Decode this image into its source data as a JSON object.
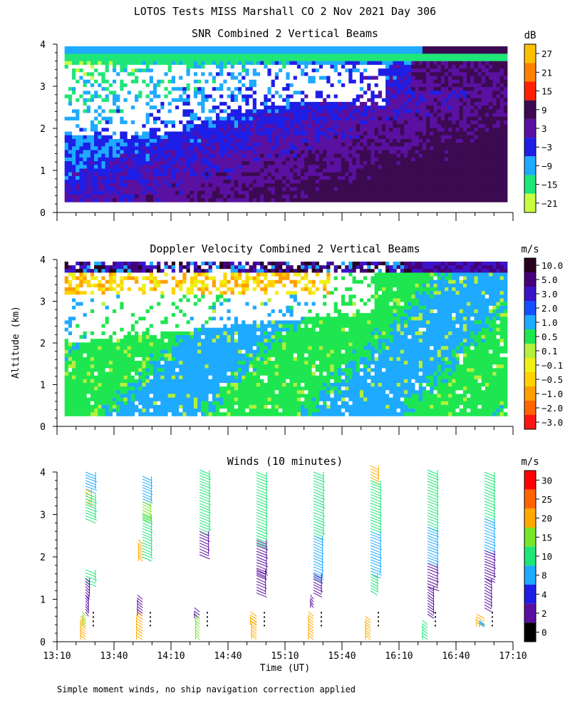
{
  "figure": {
    "title": "LOTOS Tests MISS Marshall CO   2 Nov 2021 Day 306",
    "ylabel": "Altitude (km)",
    "xlabel": "Time (UT)",
    "footnote": "Simple moment winds, no ship navigation correction applied"
  },
  "colors": {
    "missing": "#ffffff",
    "axis": "#000000"
  },
  "chart_data": [
    {
      "type": "heatmap",
      "title": "SNR Combined 2 Vertical Beams",
      "units": "dB",
      "x_ticks": [
        "13:10",
        "13:40",
        "14:10",
        "14:40",
        "15:10",
        "15:40",
        "16:10",
        "16:40",
        "17:10"
      ],
      "y_ticks": [
        "0",
        "1",
        "2",
        "3",
        "4"
      ],
      "xlim_minutes_utc": [
        790,
        1030
      ],
      "ylim_km": [
        0,
        4
      ],
      "colorbar": {
        "labels": [
          "27",
          "21",
          "15",
          "9",
          "3",
          "−3",
          "−9",
          "−15",
          "−21"
        ],
        "colors": [
          "#ffc000",
          "#ff8000",
          "#ff2000",
          "#3c0a50",
          "#5a10a0",
          "#1e1ee6",
          "#1eaaff",
          "#1ee678",
          "#c8ff3c"
        ]
      },
      "data_extent_km": [
        0.25,
        3.95
      ],
      "data_extent_minutes_utc": [
        794,
        1027
      ],
      "description_of_field": "low SNR aloft, high SNR in lowest km, strong return near 16:10-17:05 below 1 km"
    },
    {
      "type": "heatmap",
      "title": "Doppler Velocity Combined 2 Vertical Beams",
      "units": "m/s",
      "x_ticks": [
        "13:10",
        "13:40",
        "14:10",
        "14:40",
        "15:10",
        "15:40",
        "16:10",
        "16:40",
        "17:10"
      ],
      "y_ticks": [
        "0",
        "1",
        "2",
        "3",
        "4"
      ],
      "xlim_minutes_utc": [
        790,
        1030
      ],
      "ylim_km": [
        0,
        4
      ],
      "colorbar": {
        "labels": [
          "10.0",
          "5.0",
          "3.0",
          "2.0",
          "1.0",
          "0.5",
          "0.1",
          "−0.1",
          "−0.5",
          "−1.0",
          "−2.0",
          "−3.0"
        ],
        "colors": [
          "#28001e",
          "#46007a",
          "#3c14c8",
          "#1450ff",
          "#1eaaff",
          "#1ee650",
          "#b4f03c",
          "#f0f014",
          "#ffd200",
          "#ffa000",
          "#ff6400",
          "#ff1414"
        ]
      },
      "data_extent_km": [
        0.25,
        3.95
      ],
      "data_extent_minutes_utc": [
        794,
        1027
      ]
    },
    {
      "type": "barbs",
      "title": "Winds (10 minutes)",
      "units": "m/s",
      "x_ticks": [
        "13:10",
        "13:40",
        "14:10",
        "14:40",
        "15:10",
        "15:40",
        "16:10",
        "16:40",
        "17:10"
      ],
      "y_ticks": [
        "0",
        "1",
        "2",
        "3",
        "4"
      ],
      "xlim_minutes_utc": [
        790,
        1030
      ],
      "ylim_km": [
        0,
        4
      ],
      "colorbar": {
        "labels": [
          "30",
          "25",
          "20",
          "15",
          "10",
          "8",
          "4",
          "2",
          "0"
        ],
        "colors": [
          "#ff0000",
          "#ff6400",
          "#ffaa00",
          "#78e628",
          "#1ee678",
          "#1eaaff",
          "#1e1ee6",
          "#5a10a0",
          "#000000"
        ]
      },
      "profile_times_minutes_utc": [
        805,
        835,
        865,
        895,
        925,
        955,
        985,
        1015
      ],
      "profiles": [
        {
          "time_min": 805,
          "segments": [
            {
              "z_top_km": 4.0,
              "z_bottom_km": 3.6,
              "speed": 9,
              "dir_dx": 1.0
            },
            {
              "z_top_km": 3.6,
              "z_bottom_km": 3.3,
              "speed": 22,
              "dir_dx": 0.6
            },
            {
              "z_top_km": 3.5,
              "z_bottom_km": 2.9,
              "speed": 14,
              "dir_dx": 1.0
            },
            {
              "z_top_km": 1.7,
              "z_bottom_km": 1.4,
              "speed": 14,
              "dir_dx": 1.0
            },
            {
              "z_top_km": 1.5,
              "z_bottom_km": 1.1,
              "speed": 3,
              "dir_dx": 0.4
            },
            {
              "z_top_km": 1.1,
              "z_bottom_km": 0.7,
              "speed": 3,
              "dir_dx": 0.3
            },
            {
              "z_top_km": 0.6,
              "z_bottom_km": 0.35,
              "speed": 16,
              "dir_dx": -0.3
            },
            {
              "z_top_km": 0.5,
              "z_bottom_km": 0.05,
              "speed": 22,
              "dir_dx": -0.5
            }
          ]
        },
        {
          "time_min": 835,
          "segments": [
            {
              "z_top_km": 3.9,
              "z_bottom_km": 3.3,
              "speed": 9,
              "dir_dx": 0.9
            },
            {
              "z_top_km": 3.3,
              "z_bottom_km": 2.9,
              "speed": 16,
              "dir_dx": 0.8
            },
            {
              "z_top_km": 3.0,
              "z_bottom_km": 2.0,
              "speed": 12,
              "dir_dx": 0.9
            },
            {
              "z_top_km": 2.3,
              "z_bottom_km": 1.9,
              "speed": 22,
              "dir_dx": -0.4
            },
            {
              "z_top_km": 1.0,
              "z_bottom_km": 0.6,
              "speed": 3,
              "dir_dx": -0.5
            },
            {
              "z_top_km": 0.6,
              "z_bottom_km": 0.05,
              "speed": 22,
              "dir_dx": -0.6
            }
          ]
        },
        {
          "time_min": 865,
          "segments": [
            {
              "z_top_km": 4.05,
              "z_bottom_km": 2.6,
              "speed": 14,
              "dir_dx": 1.0
            },
            {
              "z_top_km": 2.6,
              "z_bottom_km": 2.05,
              "speed": 3,
              "dir_dx": 0.9
            },
            {
              "z_top_km": 0.7,
              "z_bottom_km": 0.55,
              "speed": 3,
              "dir_dx": -0.5
            },
            {
              "z_top_km": 0.55,
              "z_bottom_km": 0.05,
              "speed": 16,
              "dir_dx": -0.4
            }
          ]
        },
        {
          "time_min": 895,
          "segments": [
            {
              "z_top_km": 4.0,
              "z_bottom_km": 2.3,
              "speed": 14,
              "dir_dx": 1.0
            },
            {
              "z_top_km": 2.4,
              "z_bottom_km": 1.6,
              "speed": 3,
              "dir_dx": 1.0
            },
            {
              "z_top_km": 1.7,
              "z_bottom_km": 1.15,
              "speed": 3,
              "dir_dx": 0.9
            },
            {
              "z_top_km": 0.6,
              "z_bottom_km": 0.4,
              "speed": 22,
              "dir_dx": -0.6
            },
            {
              "z_top_km": 0.45,
              "z_bottom_km": 0.05,
              "speed": 22,
              "dir_dx": -0.5
            }
          ]
        },
        {
          "time_min": 925,
          "segments": [
            {
              "z_top_km": 4.0,
              "z_bottom_km": 2.5,
              "speed": 14,
              "dir_dx": 1.0
            },
            {
              "z_top_km": 2.5,
              "z_bottom_km": 1.5,
              "speed": 9,
              "dir_dx": 0.9
            },
            {
              "z_top_km": 1.6,
              "z_bottom_km": 1.15,
              "speed": 3,
              "dir_dx": 0.8
            },
            {
              "z_top_km": 1.0,
              "z_bottom_km": 0.8,
              "speed": 3,
              "dir_dx": -0.3
            },
            {
              "z_top_km": 0.6,
              "z_bottom_km": 0.05,
              "speed": 22,
              "dir_dx": -0.5
            }
          ]
        },
        {
          "time_min": 955,
          "segments": [
            {
              "z_top_km": 4.15,
              "z_bottom_km": 3.8,
              "speed": 22,
              "dir_dx": 0.8
            },
            {
              "z_top_km": 3.8,
              "z_bottom_km": 2.6,
              "speed": 14,
              "dir_dx": 1.0
            },
            {
              "z_top_km": 2.6,
              "z_bottom_km": 1.6,
              "speed": 9,
              "dir_dx": 1.0
            },
            {
              "z_top_km": 1.6,
              "z_bottom_km": 1.2,
              "speed": 14,
              "dir_dx": 0.7
            },
            {
              "z_top_km": 0.5,
              "z_bottom_km": 0.05,
              "speed": 22,
              "dir_dx": -0.5
            }
          ]
        },
        {
          "time_min": 985,
          "segments": [
            {
              "z_top_km": 4.05,
              "z_bottom_km": 2.7,
              "speed": 14,
              "dir_dx": 1.0
            },
            {
              "z_top_km": 2.7,
              "z_bottom_km": 1.85,
              "speed": 9,
              "dir_dx": 1.0
            },
            {
              "z_top_km": 1.85,
              "z_bottom_km": 1.3,
              "speed": 3,
              "dir_dx": 1.0
            },
            {
              "z_top_km": 1.3,
              "z_bottom_km": 0.65,
              "speed": 3,
              "dir_dx": 0.6
            },
            {
              "z_top_km": 0.4,
              "z_bottom_km": 0.05,
              "speed": 14,
              "dir_dx": -0.5
            }
          ]
        },
        {
          "time_min": 1015,
          "segments": [
            {
              "z_top_km": 4.0,
              "z_bottom_km": 2.9,
              "speed": 14,
              "dir_dx": 1.0
            },
            {
              "z_top_km": 2.9,
              "z_bottom_km": 2.15,
              "speed": 9,
              "dir_dx": 1.0
            },
            {
              "z_top_km": 2.15,
              "z_bottom_km": 1.5,
              "speed": 3,
              "dir_dx": 1.0
            },
            {
              "z_top_km": 1.5,
              "z_bottom_km": 0.8,
              "speed": 3,
              "dir_dx": 0.7
            },
            {
              "z_top_km": 0.55,
              "z_bottom_km": 0.35,
              "speed": 22,
              "dir_dx": -0.8
            },
            {
              "z_top_km": 0.4,
              "z_bottom_km": 0.35,
              "speed": 9,
              "dir_dx": -0.5
            }
          ]
        }
      ]
    }
  ]
}
